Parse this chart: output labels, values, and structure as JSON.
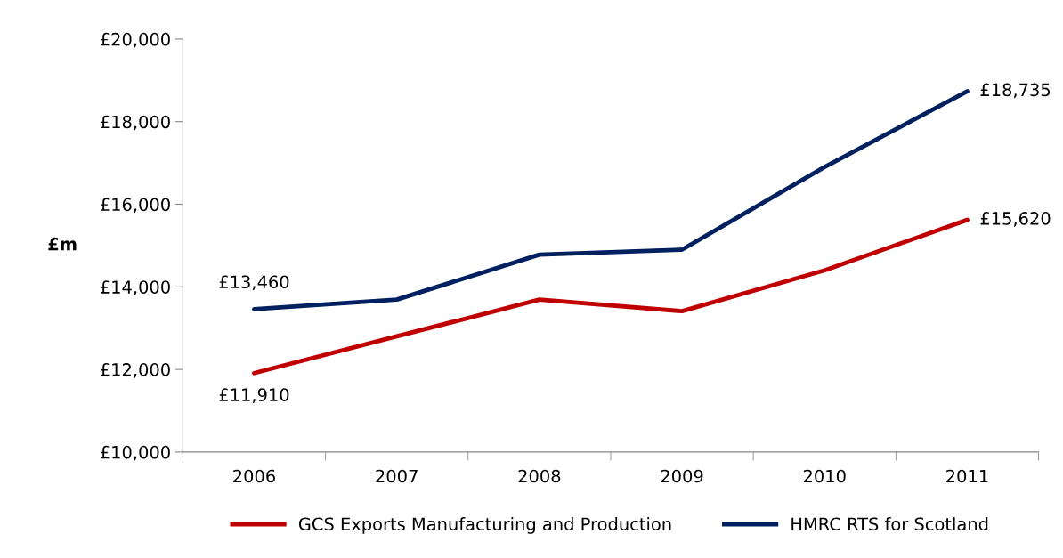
{
  "chart_data": {
    "type": "line",
    "ylabel": "£m",
    "categories": [
      "2006",
      "2007",
      "2008",
      "2009",
      "2010",
      "2011"
    ],
    "series": [
      {
        "name": "GCS Exports Manufacturing and Production",
        "color": "#c00000",
        "values": [
          11910,
          12800,
          13690,
          13410,
          14400,
          15620
        ],
        "value_labels": [
          "£11,910",
          null,
          null,
          null,
          null,
          "£15,620"
        ]
      },
      {
        "name": "HMRC RTS for Scotland",
        "color": "#002060",
        "values": [
          13460,
          13690,
          14780,
          14900,
          16900,
          18735
        ],
        "value_labels": [
          "£13,460",
          null,
          null,
          null,
          null,
          "£18,735"
        ]
      }
    ],
    "ylim": [
      10000,
      20000
    ],
    "yticks": [
      {
        "value": 10000,
        "label": "£10,000"
      },
      {
        "value": 12000,
        "label": "£12,000"
      },
      {
        "value": 14000,
        "label": "£14,000"
      },
      {
        "value": 16000,
        "label": "£16,000"
      },
      {
        "value": 18000,
        "label": "£18,000"
      },
      {
        "value": 20000,
        "label": "£20,000"
      }
    ],
    "grid": false,
    "legend": "bottom",
    "marker": "none",
    "line_style": "solid"
  }
}
